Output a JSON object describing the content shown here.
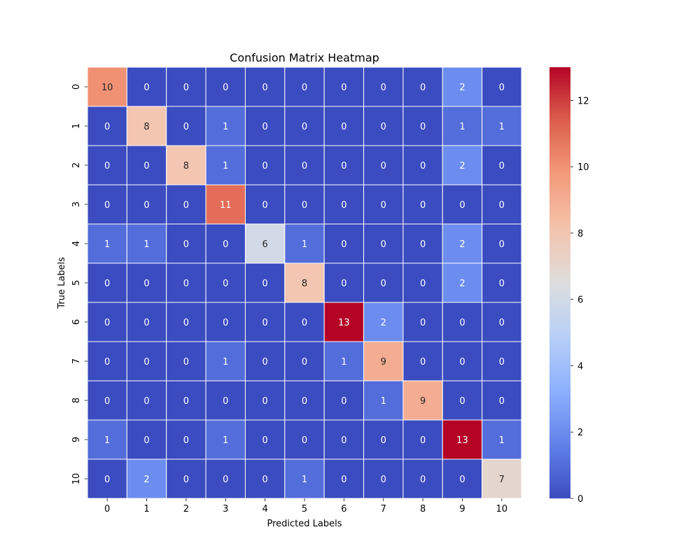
{
  "chart_data": {
    "type": "heatmap",
    "title": "Confusion Matrix Heatmap",
    "xlabel": "Predicted Labels",
    "ylabel": "True Labels",
    "x_categories": [
      "0",
      "1",
      "2",
      "3",
      "4",
      "5",
      "6",
      "7",
      "8",
      "9",
      "10"
    ],
    "y_categories": [
      "0",
      "1",
      "2",
      "3",
      "4",
      "5",
      "6",
      "7",
      "8",
      "9",
      "10"
    ],
    "matrix": [
      [
        10,
        0,
        0,
        0,
        0,
        0,
        0,
        0,
        0,
        2,
        0
      ],
      [
        0,
        8,
        0,
        1,
        0,
        0,
        0,
        0,
        0,
        1,
        1
      ],
      [
        0,
        0,
        8,
        1,
        0,
        0,
        0,
        0,
        0,
        2,
        0
      ],
      [
        0,
        0,
        0,
        11,
        0,
        0,
        0,
        0,
        0,
        0,
        0
      ],
      [
        1,
        1,
        0,
        0,
        6,
        1,
        0,
        0,
        0,
        2,
        0
      ],
      [
        0,
        0,
        0,
        0,
        0,
        8,
        0,
        0,
        0,
        2,
        0
      ],
      [
        0,
        0,
        0,
        0,
        0,
        0,
        13,
        2,
        0,
        0,
        0
      ],
      [
        0,
        0,
        0,
        1,
        0,
        0,
        1,
        9,
        0,
        0,
        0
      ],
      [
        0,
        0,
        0,
        0,
        0,
        0,
        0,
        1,
        9,
        0,
        0
      ],
      [
        1,
        0,
        0,
        1,
        0,
        0,
        0,
        0,
        0,
        13,
        1
      ],
      [
        0,
        2,
        0,
        0,
        0,
        1,
        0,
        0,
        0,
        0,
        7
      ]
    ],
    "colormap": "coolwarm",
    "value_range": [
      0,
      13
    ],
    "colorbar_ticks": [
      "0",
      "2",
      "4",
      "6",
      "8",
      "10",
      "12"
    ],
    "annotate": true,
    "grid": false,
    "legend": "colorbar-right"
  }
}
